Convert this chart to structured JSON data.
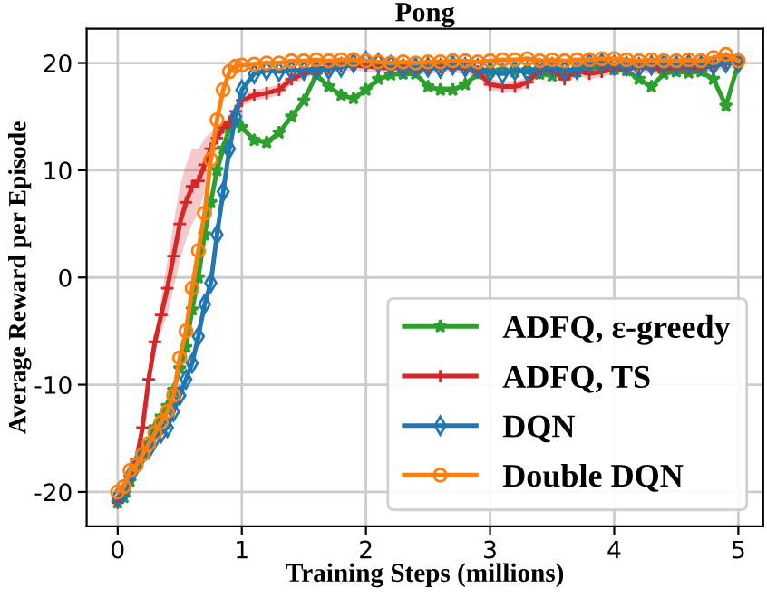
{
  "chart_data": {
    "type": "line",
    "title": "Pong",
    "xlabel": "Training Steps (millions)",
    "ylabel": "Average Reward per Episode",
    "x": [
      0,
      0.05,
      0.1,
      0.15,
      0.2,
      0.25,
      0.3,
      0.35,
      0.4,
      0.45,
      0.5,
      0.55,
      0.6,
      0.65,
      0.7,
      0.75,
      0.8,
      0.85,
      0.9,
      0.95,
      1.0,
      1.1,
      1.2,
      1.3,
      1.4,
      1.5,
      1.6,
      1.7,
      1.8,
      1.9,
      2.0,
      2.1,
      2.2,
      2.3,
      2.4,
      2.5,
      2.6,
      2.7,
      2.8,
      2.9,
      3.0,
      3.1,
      3.2,
      3.3,
      3.4,
      3.5,
      3.6,
      3.7,
      3.8,
      3.9,
      4.0,
      4.1,
      4.2,
      4.3,
      4.4,
      4.5,
      4.6,
      4.7,
      4.8,
      4.9,
      5.0
    ],
    "series": [
      {
        "name": "ADFQ, ε-greedy",
        "color": "#2ca02c",
        "marker": "star",
        "values": [
          -21,
          -20.5,
          -19,
          -17.5,
          -16.5,
          -15.5,
          -14,
          -13,
          -12,
          -10.5,
          -8.5,
          -6.5,
          -3,
          0,
          4,
          7,
          10,
          12,
          14,
          14.5,
          14,
          12.8,
          12.6,
          13.5,
          15,
          16.5,
          18.9,
          17.8,
          17,
          16.7,
          17.5,
          18.5,
          18.9,
          19,
          19,
          17.8,
          17.5,
          17.5,
          18,
          19,
          19.2,
          19.3,
          19.2,
          19.3,
          19,
          18.8,
          19,
          19.2,
          19.5,
          19.6,
          19.4,
          19.3,
          18.5,
          17.8,
          19,
          19.2,
          19.1,
          19.2,
          18.5,
          16,
          20
        ]
      },
      {
        "name": "ADFQ, TS",
        "color": "#d62728",
        "marker": "cross",
        "values": [
          -21,
          -20,
          -18.5,
          -17,
          -14,
          -9.5,
          -6,
          -3.5,
          -1,
          2,
          5,
          7,
          8.5,
          9,
          10.5,
          12,
          13,
          14,
          14.5,
          15.5,
          16.5,
          17,
          17.2,
          17.5,
          18.5,
          19,
          19.5,
          19.5,
          19.7,
          19.8,
          19.7,
          19.6,
          19.5,
          19.6,
          19.4,
          19.5,
          19.6,
          19.6,
          19.5,
          19.2,
          18,
          17.8,
          17.8,
          18.2,
          19.3,
          19.4,
          18.5,
          19.3,
          19,
          19.2,
          19.5,
          19.5,
          19.6,
          19.5,
          19.4,
          19.6,
          19.5,
          19.6,
          19.7,
          20,
          20
        ],
        "lower": [
          -21.5,
          -20.5,
          -19,
          -17.5,
          -14.5,
          -10,
          -6.5,
          -5,
          -3.5,
          -1,
          1.5,
          3.5,
          5,
          6,
          8,
          10.5,
          12,
          13.5,
          14,
          15,
          16,
          16.5,
          16.7,
          17,
          18,
          18.5,
          19,
          19,
          19.2,
          19.3,
          19.2,
          19.1,
          19,
          19.1,
          18.9,
          19,
          19.1,
          19.1,
          19,
          18.7,
          17.5,
          17.3,
          17.3,
          17.7,
          18.8,
          18.9,
          18,
          18.8,
          18.5,
          18.7,
          19,
          19,
          19.1,
          19,
          18.9,
          19.1,
          19,
          19.1,
          19.2,
          19.5,
          19.5
        ],
        "upper": [
          -20.5,
          -19.5,
          -18,
          -16.5,
          -13.5,
          -9,
          -5.5,
          -2,
          1.5,
          5,
          8.5,
          10.5,
          12,
          12,
          13,
          13.5,
          14,
          14.5,
          15,
          16,
          17,
          17.5,
          17.7,
          18,
          19,
          19.5,
          20,
          20,
          20.2,
          20.3,
          20.2,
          20.1,
          20,
          20.1,
          19.9,
          20,
          20.1,
          20.1,
          20,
          19.7,
          18.5,
          18.3,
          18.3,
          18.7,
          19.8,
          19.9,
          19,
          19.8,
          19.5,
          19.7,
          20,
          20,
          20.1,
          20,
          19.9,
          20.1,
          20,
          20.1,
          20.2,
          20.5,
          20.5
        ]
      },
      {
        "name": "DQN",
        "color": "#1f77b4",
        "marker": "diamond",
        "values": [
          -20.5,
          -20,
          -18.5,
          -17.5,
          -16.5,
          -16,
          -15,
          -14.5,
          -14,
          -12.5,
          -11,
          -9.5,
          -8,
          -5.5,
          -2.5,
          -0.5,
          4,
          8,
          12,
          15,
          17.5,
          19,
          19.3,
          19.2,
          19.3,
          19.3,
          19.4,
          19.4,
          19.6,
          20,
          20.2,
          20,
          19.8,
          19.5,
          19.6,
          19.6,
          19.5,
          19.8,
          19.6,
          19.5,
          19.2,
          19,
          19.3,
          19.2,
          19.5,
          19.6,
          19.3,
          19.4,
          20,
          20,
          19.8,
          19.7,
          19.6,
          19.8,
          19.9,
          19.8,
          19.9,
          19.8,
          19.8,
          20,
          20
        ]
      },
      {
        "name": "Double DQN",
        "color": "#ff7f0e",
        "marker": "circle",
        "values": [
          -20,
          -19.5,
          -18,
          -17.5,
          -16.5,
          -15.5,
          -14.5,
          -13.5,
          -12.5,
          -11,
          -7.5,
          -5,
          -1,
          2.5,
          6,
          11,
          14.7,
          17.5,
          19.2,
          19.7,
          19.8,
          19.9,
          20,
          20,
          20.2,
          20.2,
          20.3,
          20.2,
          20.3,
          20.3,
          20.2,
          20.1,
          20,
          20.1,
          20,
          20.1,
          20.1,
          20.2,
          20.2,
          20.1,
          20.2,
          20.3,
          20.3,
          20.4,
          20.2,
          20.3,
          20.2,
          20.3,
          20.3,
          20.4,
          20.4,
          20.3,
          20.2,
          20.3,
          20.2,
          20.2,
          20.3,
          20.2,
          20.5,
          20.8,
          20.2
        ]
      }
    ],
    "xlim": [
      -0.25,
      5.2
    ],
    "ylim": [
      -23.2,
      23.2
    ],
    "xticks": [
      0,
      1,
      2,
      3,
      4,
      5
    ],
    "yticks": [
      -20,
      -10,
      0,
      10,
      20
    ],
    "grid": true,
    "legend": "bottom right",
    "line_style": "solid"
  }
}
